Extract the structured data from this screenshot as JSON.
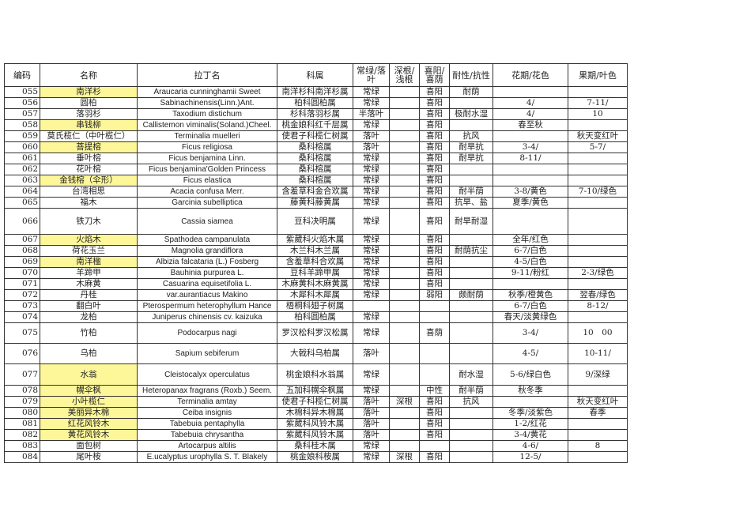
{
  "headers": [
    "编码",
    "名称",
    "拉丁名",
    "科属",
    "常绿/落叶",
    "深根/浅根",
    "喜阳/喜荫",
    "耐性/抗性",
    "花期/花色",
    "果期/叶色"
  ],
  "highlight_color": "#fdf79a",
  "rows": [
    {
      "code": "055",
      "name": "南洋杉",
      "latin": "Araucaria cunninghamii Sweet",
      "family": "南洋杉科南洋杉属",
      "leaf": "常绿",
      "root": "",
      "light": "喜阳",
      "tolerance": "耐荫",
      "flower": "",
      "fruit": "",
      "highlight": true
    },
    {
      "code": "056",
      "name": "圆柏",
      "latin": "Sabinachinensis(Linn.)Ant.",
      "family": "柏科圆柏属",
      "leaf": "常绿",
      "root": "",
      "light": "喜阳",
      "tolerance": "",
      "flower": "4/",
      "fruit": "7-11/",
      "highlight": false
    },
    {
      "code": "057",
      "name": "落羽杉",
      "latin": "Taxodium distichum",
      "family": "杉科落羽杉属",
      "leaf": "半落叶",
      "root": "",
      "light": "喜阳",
      "tolerance": "极耐水湿",
      "flower": "4/",
      "fruit": "10",
      "highlight": false
    },
    {
      "code": "058",
      "name": "串钱柳",
      "latin": "Callistemon viminalis(Soland.)Cheel.",
      "family": "桃金娘科红千层属",
      "leaf": "常绿",
      "root": "",
      "light": "喜阳",
      "tolerance": "",
      "flower": "春至秋",
      "fruit": "",
      "highlight": true
    },
    {
      "code": "059",
      "name": "莫氏榄仁（中叶榄仁）",
      "latin": "Terminalia muelleri",
      "family": "使君子科榄仁树属",
      "leaf": "落叶",
      "root": "",
      "light": "喜阳",
      "tolerance": "抗风",
      "flower": "",
      "fruit": "秋天变红叶",
      "highlight": false
    },
    {
      "code": "060",
      "name": "菩提榕",
      "latin": "Ficus religiosa",
      "family": "桑科榕属",
      "leaf": "落叶",
      "root": "",
      "light": "喜阳",
      "tolerance": "耐旱抗",
      "flower": "3-4/",
      "fruit": "5-7/",
      "highlight": true
    },
    {
      "code": "061",
      "name": "垂叶榕",
      "latin": "Ficus benjamina Linn.",
      "family": "桑科榕属",
      "leaf": "常绿",
      "root": "",
      "light": "喜阳",
      "tolerance": "耐旱抗",
      "flower": "8-11/",
      "fruit": "",
      "highlight": false
    },
    {
      "code": "062",
      "name": "花叶榕",
      "latin": "Ficus benjamina'Golden Princess",
      "family": "桑科榕属",
      "leaf": "常绿",
      "root": "",
      "light": "喜阳",
      "tolerance": "",
      "flower": "",
      "fruit": "",
      "highlight": false
    },
    {
      "code": "063",
      "name": "金钱榕（伞形）",
      "latin": "Ficus elastica",
      "family": "桑科榕属",
      "leaf": "常绿",
      "root": "",
      "light": "喜阳",
      "tolerance": "",
      "flower": "",
      "fruit": "",
      "highlight": true
    },
    {
      "code": "064",
      "name": "台湾相思",
      "latin": "Acacia confusa Merr.",
      "family": "含羞草科金合欢属",
      "leaf": "常绿",
      "root": "",
      "light": "喜阳",
      "tolerance": "耐半荫",
      "flower": "3-8/黄色",
      "fruit": "7-10/绿色",
      "highlight": false
    },
    {
      "code": "065",
      "name": "福木",
      "latin": "Garcinia subelliptica",
      "family": "藤黄科藤黄属",
      "leaf": "常绿",
      "root": "",
      "light": "喜阳",
      "tolerance": "抗旱、盐",
      "flower": "夏季/黄色",
      "fruit": "",
      "highlight": false
    },
    {
      "code": "066",
      "name": "铁刀木",
      "latin": "Cassia siamea",
      "family": "豆科决明属",
      "leaf": "常绿",
      "root": "",
      "light": "喜阳",
      "tolerance": "耐旱耐湿",
      "flower": "",
      "fruit": "",
      "highlight": false
    },
    {
      "code": "067",
      "name": "火焰木",
      "latin": "Spathodea campanulata",
      "family": "紫葳科火焰木属",
      "leaf": "常绿",
      "root": "",
      "light": "喜阳",
      "tolerance": "",
      "flower": "全年/红色",
      "fruit": "",
      "highlight": true
    },
    {
      "code": "068",
      "name": "荷花玉兰",
      "latin": "Magnolia grandiflora",
      "family": "木兰科木兰属",
      "leaf": "常绿",
      "root": "",
      "light": "喜阳",
      "tolerance": "耐荫抗尘",
      "flower": "6-7/白色",
      "fruit": "",
      "highlight": false
    },
    {
      "code": "069",
      "name": "南洋楹",
      "latin": "Albizia falcataria (L.) Fosberg",
      "family": "含羞草科合欢属",
      "leaf": "常绿",
      "root": "",
      "light": "喜阳",
      "tolerance": "",
      "flower": "4-5/白色",
      "fruit": "",
      "highlight": true
    },
    {
      "code": "070",
      "name": "羊蹄甲",
      "latin": "Bauhinia purpurea L.",
      "family": "豆科羊蹄甲属",
      "leaf": "常绿",
      "root": "",
      "light": "喜阳",
      "tolerance": "",
      "flower": "9-11/粉红",
      "fruit": "2-3/绿色",
      "highlight": false
    },
    {
      "code": "071",
      "name": "木麻黄",
      "latin": "Casuarina equisetifolia L.",
      "family": "木麻黄科木麻黄属",
      "leaf": "常绿",
      "root": "",
      "light": "喜阳",
      "tolerance": "",
      "flower": "",
      "fruit": "",
      "highlight": false
    },
    {
      "code": "072",
      "name": "丹桂",
      "latin": "var.aurantiacus Makino",
      "family": "木犀科木犀属",
      "leaf": "常绿",
      "root": "",
      "light": "弱阳",
      "tolerance": "颇耐荫",
      "flower": "秋季/橙黄色",
      "fruit": "翌春/绿色",
      "highlight": false
    },
    {
      "code": "073",
      "name": "翻白叶",
      "latin": "Pterospermum heterophyllum Hance",
      "family": "梧桐科翅子树属",
      "leaf": "",
      "root": "",
      "light": "",
      "tolerance": "",
      "flower": "6-7/白色",
      "fruit": "8-12/",
      "highlight": false
    },
    {
      "code": "074",
      "name": "龙柏",
      "latin": "Juniperus chinensis cv. kaizuka",
      "family": "柏科圆柏属",
      "leaf": "常绿",
      "root": "",
      "light": "",
      "tolerance": "",
      "flower": "春天/淡黄绿色",
      "fruit": "",
      "highlight": false
    },
    {
      "code": "075",
      "name": "竹柏",
      "latin": "Podocarpus nagi",
      "family": "罗汉松科罗汉松属",
      "leaf": "常绿",
      "root": "",
      "light": "喜荫",
      "tolerance": "",
      "flower": "3-4/",
      "fruit": "10　00",
      "highlight": false
    },
    {
      "code": "076",
      "name": "乌柏",
      "latin": "Sapium sebiferum",
      "family": "大戟科乌柏属",
      "leaf": "落叶",
      "root": "",
      "light": "",
      "tolerance": "",
      "flower": "4-5/",
      "fruit": "10-11/",
      "highlight": false
    },
    {
      "code": "077",
      "name": "水翁",
      "latin": "Cleistocalyx operculatus",
      "family": "桃金娘科水翁属",
      "leaf": "常绿",
      "root": "",
      "light": "",
      "tolerance": "耐水湿",
      "flower": "5-6/绿白色",
      "fruit": "9/深绿",
      "highlight": true
    },
    {
      "code": "078",
      "name": "幌伞枫",
      "latin": "Heteropanax fragrans (Roxb.) Seem.",
      "family": "五加科幌伞枫属",
      "leaf": "常绿",
      "root": "",
      "light": "中性",
      "tolerance": "耐半荫",
      "flower": "秋冬季",
      "fruit": "",
      "highlight": true
    },
    {
      "code": "079",
      "name": "小叶榄仁",
      "latin": "Terminalia amtay",
      "family": "使君子科榄仁树属",
      "leaf": "落叶",
      "root": "深根",
      "light": "喜阳",
      "tolerance": "抗风",
      "flower": "",
      "fruit": "秋天变红叶",
      "highlight": true
    },
    {
      "code": "080",
      "name": "美丽异木棉",
      "latin": "Ceiba insignis",
      "family": "木棉科异木棉属",
      "leaf": "落叶",
      "root": "",
      "light": "喜阳",
      "tolerance": "",
      "flower": "冬季/淡紫色",
      "fruit": "春季",
      "highlight": true
    },
    {
      "code": "081",
      "name": "红花风铃木",
      "latin": "Tabebuia pentaphylla",
      "family": "紫葳科风铃木属",
      "leaf": "落叶",
      "root": "",
      "light": "喜阳",
      "tolerance": "",
      "flower": "1-2/红花",
      "fruit": "",
      "highlight": true
    },
    {
      "code": "082",
      "name": "黄花风铃木",
      "latin": "Tabebuia chrysantha",
      "family": "紫葳科风铃木属",
      "leaf": "落叶",
      "root": "",
      "light": "喜阳",
      "tolerance": "",
      "flower": "3-4/黄花",
      "fruit": "",
      "highlight": true
    },
    {
      "code": "083",
      "name": "面包树",
      "latin": "Artocarpus altilis",
      "family": "桑科桂木属",
      "leaf": "常绿",
      "root": "",
      "light": "",
      "tolerance": "",
      "flower": "4-6/",
      "fruit": "8",
      "highlight": false
    },
    {
      "code": "084",
      "name": "尾叶桉",
      "latin": "E.ucalyptus urophylla S. T. Blakely",
      "family": "桃金娘科桉属",
      "leaf": "常绿",
      "root": "深根",
      "light": "喜阳",
      "tolerance": "",
      "flower": "12-5/",
      "fruit": "",
      "highlight": false
    }
  ]
}
